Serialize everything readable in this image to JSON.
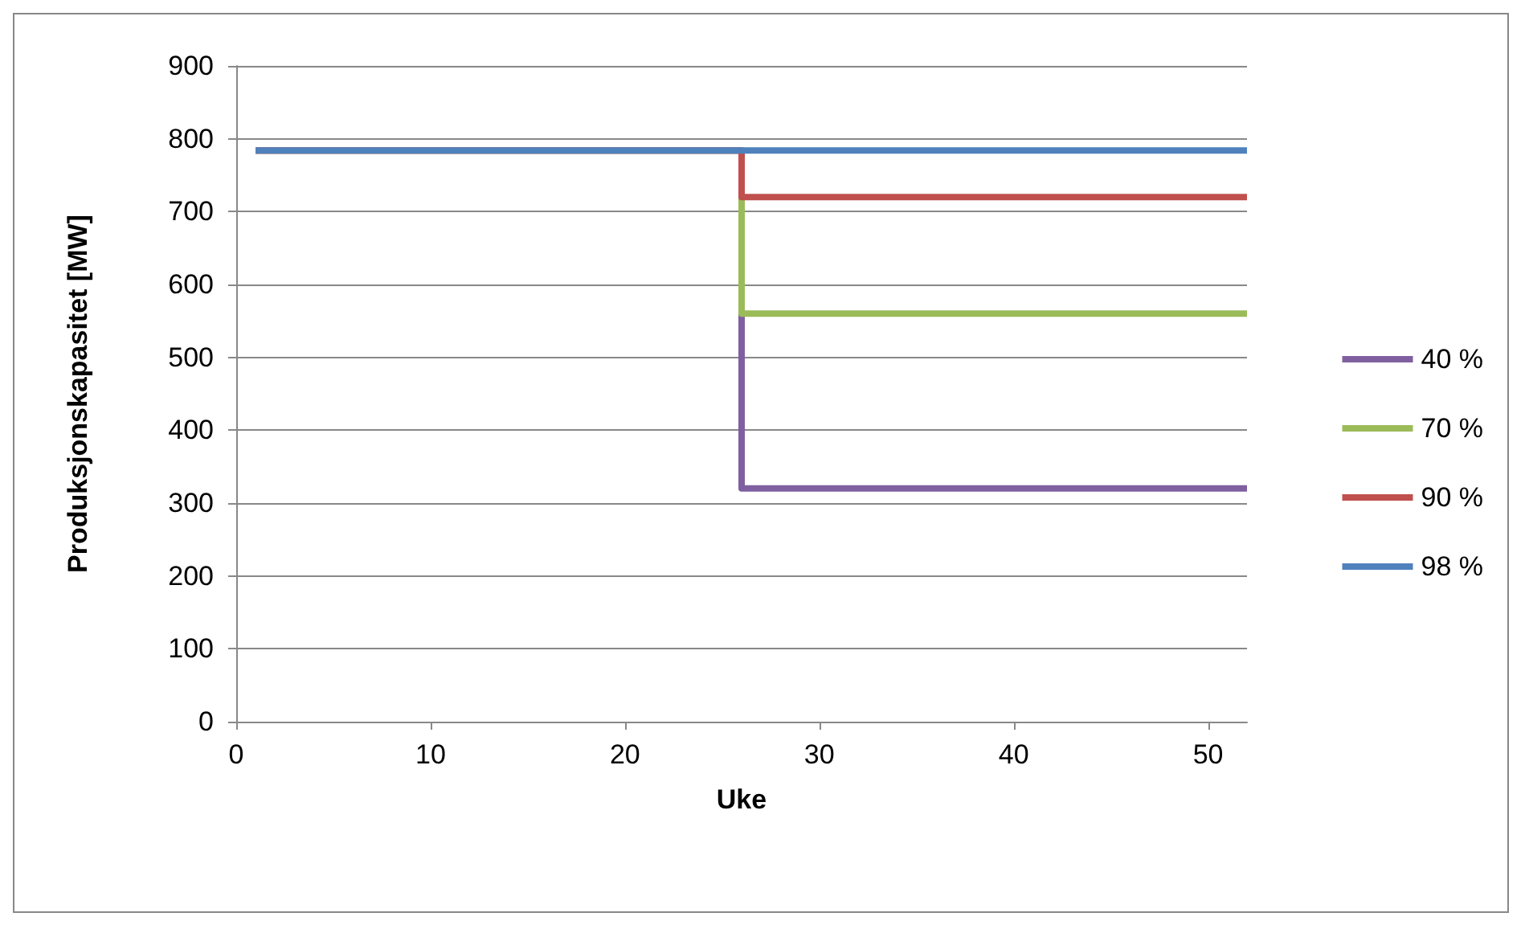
{
  "chart_data": {
    "type": "step",
    "xlabel": "Uke",
    "ylabel": "Produksjonskapasitet [MW]",
    "x": [
      1,
      26,
      52
    ],
    "series": [
      {
        "name": "40 %",
        "color": "#7f5fa0",
        "values": [
          784,
          320,
          320
        ]
      },
      {
        "name": "70 %",
        "color": "#9bbb59",
        "values": [
          784,
          560,
          560
        ]
      },
      {
        "name": "90 %",
        "color": "#c0504d",
        "values": [
          784,
          720,
          720
        ]
      },
      {
        "name": "98 %",
        "color": "#4f81bd",
        "values": [
          784,
          784,
          784
        ]
      }
    ],
    "xlim": [
      0,
      52
    ],
    "xticks": [
      0,
      10,
      20,
      30,
      40,
      50
    ],
    "ylim": [
      0,
      900
    ],
    "yticks": [
      0,
      100,
      200,
      300,
      400,
      500,
      600,
      700,
      800,
      900
    ],
    "grid": "y",
    "legend": "right",
    "marker": "none",
    "line_style": "solid"
  }
}
